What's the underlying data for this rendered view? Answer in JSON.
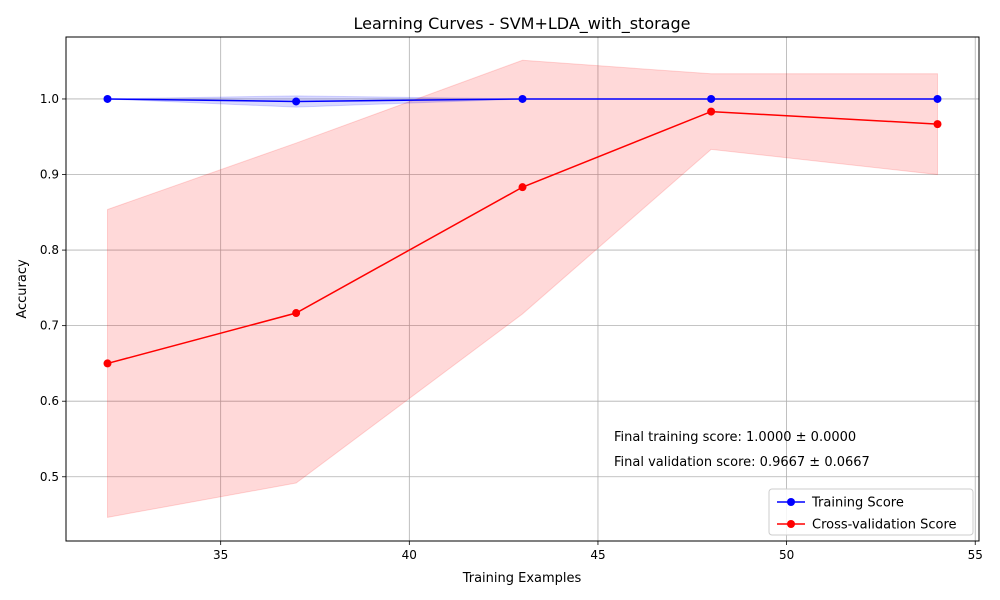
{
  "chart_data": {
    "type": "line",
    "title": "Learning Curves - SVM+LDA_with_storage",
    "xlabel": "Training Examples",
    "ylabel": "Accuracy",
    "xlim": [
      30.9,
      55.1
    ],
    "ylim": [
      0.415,
      1.082
    ],
    "x": [
      32,
      37,
      43,
      48,
      54
    ],
    "xticks": [
      35,
      40,
      45,
      50,
      55
    ],
    "yticks": [
      0.5,
      0.6,
      0.7,
      0.8,
      0.9,
      1.0
    ],
    "grid": true,
    "legend_position": "lower-right",
    "series": [
      {
        "name": "Training Score",
        "color": "#0000ff",
        "band_color": "#0000ff",
        "values": [
          1.0,
          0.9967,
          1.0,
          1.0,
          1.0
        ],
        "band_lower": [
          1.0,
          0.9892,
          1.0,
          1.0,
          1.0
        ],
        "band_upper": [
          1.0,
          1.0041,
          1.0,
          1.0,
          1.0
        ]
      },
      {
        "name": "Cross-validation Score",
        "color": "#ff0000",
        "band_color": "#ff0000",
        "values": [
          0.65,
          0.7167,
          0.8833,
          0.9833,
          0.9667
        ],
        "band_lower": [
          0.4463,
          0.4917,
          0.7155,
          0.9333,
          0.9
        ],
        "band_upper": [
          0.8537,
          0.9416,
          1.0512,
          1.0333,
          1.0333
        ]
      }
    ],
    "annotations": [
      "Final training score: 1.0000 ± 0.0000",
      "Final validation score: 0.9667 ± 0.0667"
    ]
  }
}
